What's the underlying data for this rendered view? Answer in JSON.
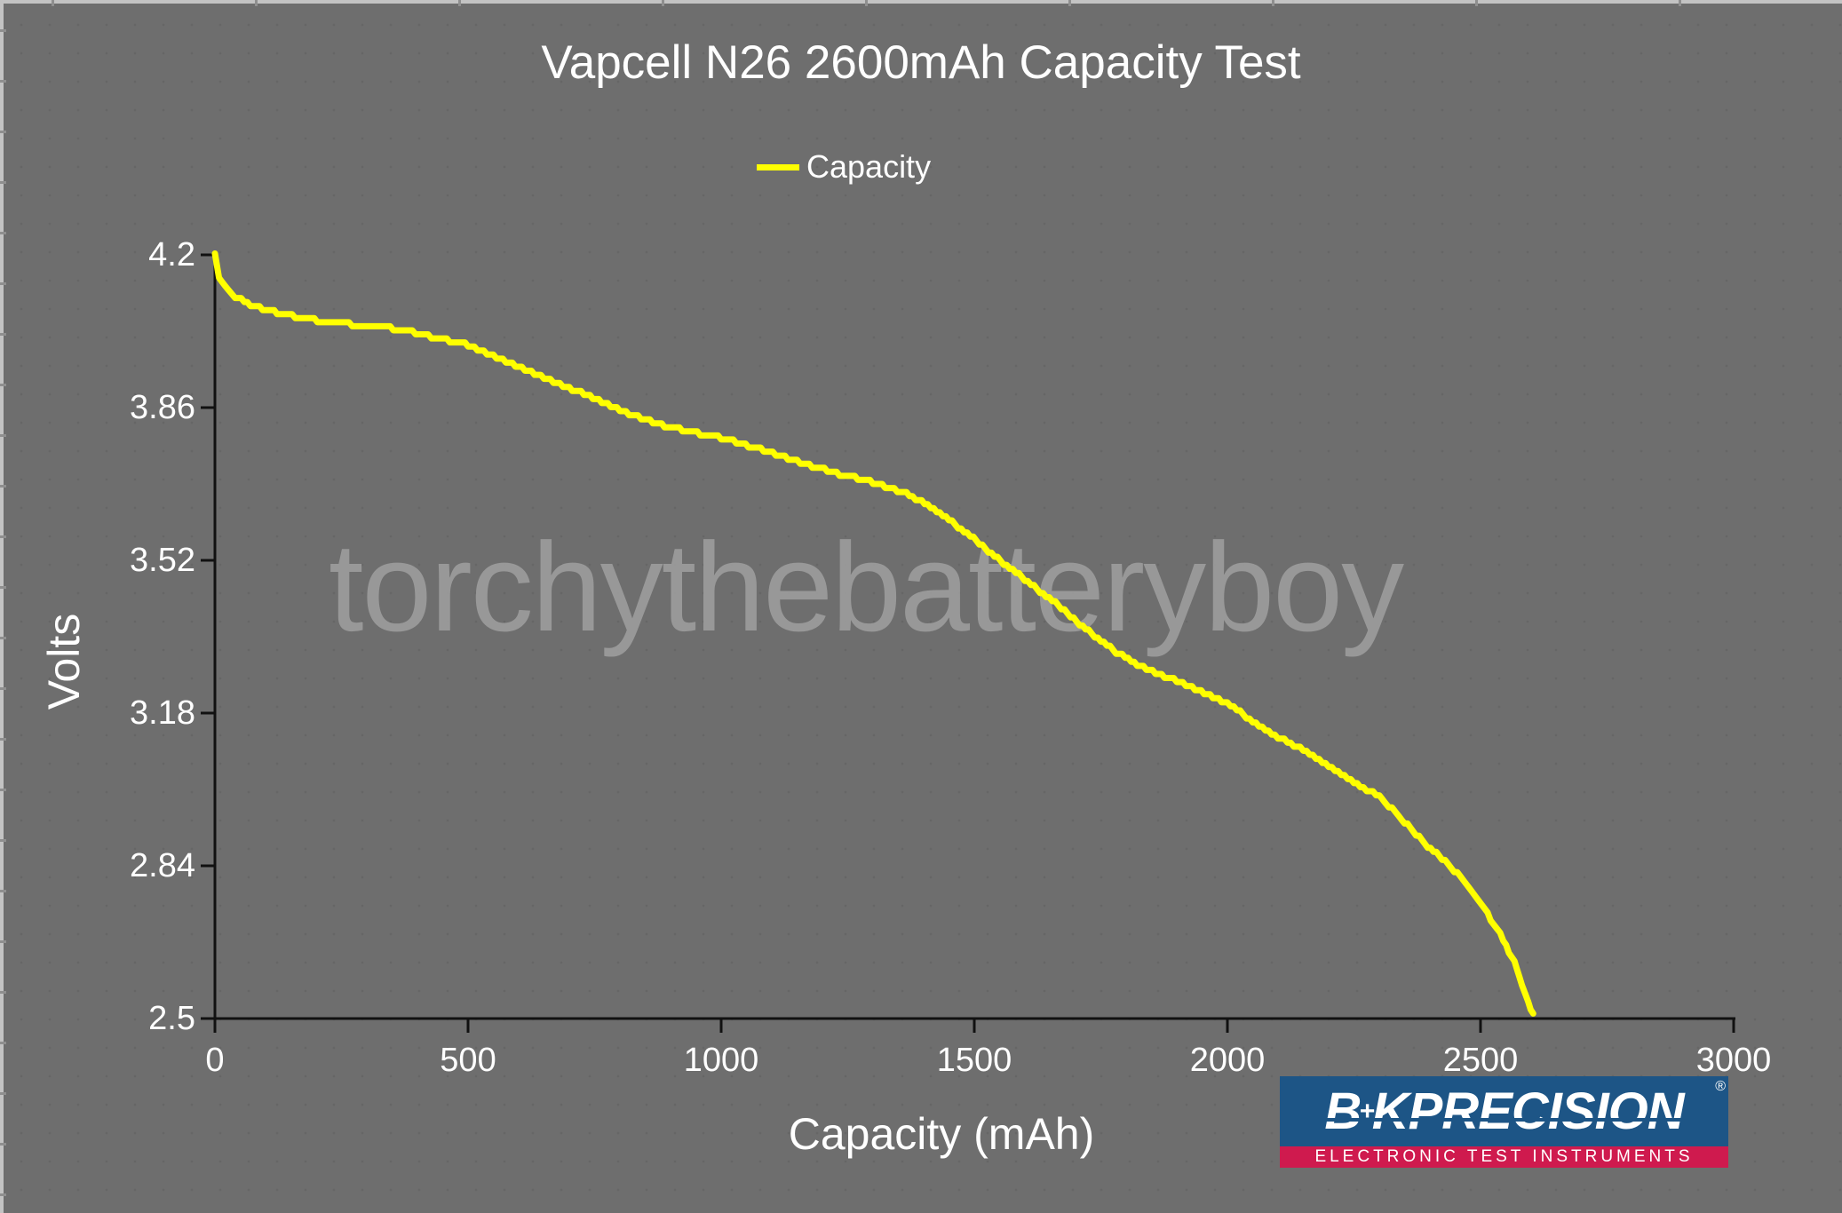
{
  "colors": {
    "background": "#6e6e6e",
    "axis": "#111111",
    "text": "#ffffff",
    "curve": "#ffff00",
    "watermark": "#9c9c9c",
    "logo_blue": "#1d5586",
    "logo_red": "#cf1a4e"
  },
  "chart_data": {
    "type": "line",
    "title": "Vapcell N26 2600mAh Capacity Test",
    "xlabel": "Capacity (mAh)",
    "ylabel": "Volts",
    "xlim": [
      0,
      3000
    ],
    "ylim": [
      2.5,
      4.2
    ],
    "x_ticks": [
      0,
      500,
      1000,
      1500,
      2000,
      2500,
      3000
    ],
    "y_ticks": [
      4.2,
      3.86,
      3.52,
      3.18,
      2.84,
      2.5
    ],
    "y_tick_labels": [
      "4.2",
      "3.86",
      "3.52",
      "3.18",
      "2.84",
      "2.5"
    ],
    "grid": false,
    "legend": {
      "position": "top-center",
      "entries": [
        {
          "label": "Capacity",
          "color": "#ffff00"
        }
      ]
    },
    "series": [
      {
        "name": "Capacity",
        "color": "#ffff00",
        "points": [
          [
            0,
            4.2
          ],
          [
            8,
            4.15
          ],
          [
            20,
            4.128
          ],
          [
            40,
            4.108
          ],
          [
            70,
            4.09
          ],
          [
            100,
            4.078
          ],
          [
            140,
            4.066
          ],
          [
            190,
            4.056
          ],
          [
            240,
            4.048
          ],
          [
            290,
            4.043
          ],
          [
            340,
            4.038
          ],
          [
            390,
            4.028
          ],
          [
            440,
            4.014
          ],
          [
            500,
            4.0
          ],
          [
            550,
            3.976
          ],
          [
            600,
            3.951
          ],
          [
            650,
            3.928
          ],
          [
            700,
            3.904
          ],
          [
            770,
            3.87
          ],
          [
            830,
            3.841
          ],
          [
            900,
            3.816
          ],
          [
            1000,
            3.793
          ],
          [
            1060,
            3.773
          ],
          [
            1120,
            3.753
          ],
          [
            1180,
            3.73
          ],
          [
            1240,
            3.71
          ],
          [
            1300,
            3.694
          ],
          [
            1360,
            3.672
          ],
          [
            1420,
            3.636
          ],
          [
            1480,
            3.585
          ],
          [
            1540,
            3.53
          ],
          [
            1600,
            3.477
          ],
          [
            1660,
            3.425
          ],
          [
            1720,
            3.368
          ],
          [
            1780,
            3.315
          ],
          [
            1840,
            3.278
          ],
          [
            1900,
            3.252
          ],
          [
            1960,
            3.222
          ],
          [
            2000,
            3.2
          ],
          [
            2050,
            3.163
          ],
          [
            2100,
            3.126
          ],
          [
            2150,
            3.098
          ],
          [
            2200,
            3.062
          ],
          [
            2250,
            3.025
          ],
          [
            2300,
            2.995
          ],
          [
            2350,
            2.938
          ],
          [
            2390,
            2.89
          ],
          [
            2430,
            2.85
          ],
          [
            2460,
            2.815
          ],
          [
            2490,
            2.771
          ],
          [
            2520,
            2.722
          ],
          [
            2545,
            2.675
          ],
          [
            2567,
            2.624
          ],
          [
            2582,
            2.578
          ],
          [
            2594,
            2.538
          ],
          [
            2604,
            2.507
          ]
        ]
      }
    ]
  },
  "watermark": {
    "text": "torchythebatteryboy"
  },
  "logo": {
    "brand_b": "B",
    "brand_plus": "+",
    "brand_k": "K",
    "brand_name": " PRECISION",
    "registered": "®",
    "tagline": "ELECTRONIC TEST INSTRUMENTS"
  }
}
